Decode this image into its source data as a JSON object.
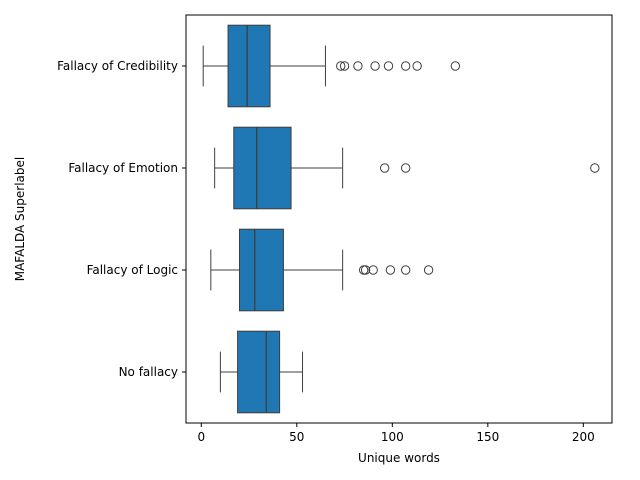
{
  "chart_data": {
    "type": "boxplot",
    "orientation": "horizontal",
    "xlabel": "Unique words",
    "ylabel": "MAFALDA Superlabel",
    "xlim": [
      -8,
      215
    ],
    "xticks": [
      0,
      50,
      100,
      150,
      200
    ],
    "grid": false,
    "box_color": "#1f77b4",
    "categories": [
      "Fallacy of Credibility",
      "Fallacy of Emotion",
      "Fallacy of Logic",
      "No fallacy"
    ],
    "series": [
      {
        "category": "Fallacy of Credibility",
        "whisker_low": 1,
        "q1": 14,
        "median": 24,
        "q3": 36,
        "whisker_high": 65,
        "outliers": [
          73,
          75,
          82,
          91,
          98,
          107,
          113,
          133
        ]
      },
      {
        "category": "Fallacy of Emotion",
        "whisker_low": 7,
        "q1": 17,
        "median": 29,
        "q3": 47,
        "whisker_high": 74,
        "outliers": [
          96,
          107,
          206
        ]
      },
      {
        "category": "Fallacy of Logic",
        "whisker_low": 5,
        "q1": 20,
        "median": 28,
        "q3": 43,
        "whisker_high": 74,
        "outliers": [
          85,
          86,
          90,
          99,
          107,
          119
        ]
      },
      {
        "category": "No fallacy",
        "whisker_low": 10,
        "q1": 19,
        "median": 34,
        "q3": 41,
        "whisker_high": 53,
        "outliers": []
      }
    ]
  }
}
